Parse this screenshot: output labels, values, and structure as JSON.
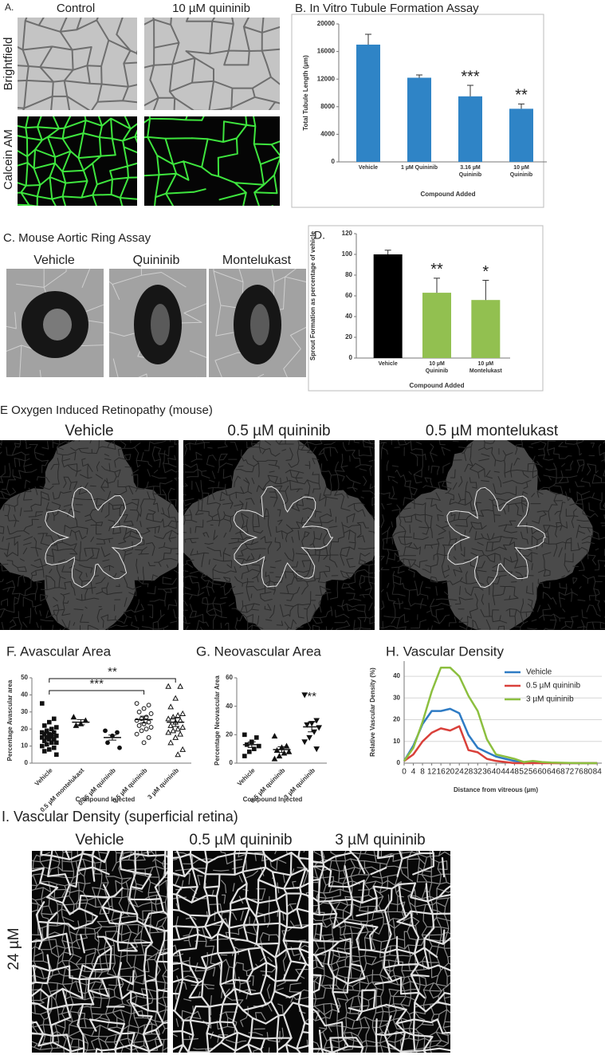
{
  "image_panels": {
    "a": {
      "label": "A.",
      "columns": [
        "Control",
        "10 µM quininib"
      ],
      "rows": [
        "Brightfield",
        "Calcein AM"
      ]
    },
    "c": {
      "title": "C. Mouse Aortic Ring Assay",
      "captions": [
        "Vehicle",
        "Quininib",
        "Montelukast"
      ]
    },
    "e": {
      "title": "E Oxygen Induced Retinopathy (mouse)",
      "captions": [
        "Vehicle",
        "0.5 µM quininib",
        "0.5 µM montelukast"
      ]
    },
    "i": {
      "title": "I. Vascular Density (superficial retina)",
      "captions": [
        "Vehicle",
        "0.5 µM quininib",
        "3 µM quininib"
      ],
      "row_label": "24 µM"
    }
  },
  "chart_data": [
    {
      "type": "bar",
      "title": "B. In Vitro Tubule Formation Assay",
      "y_label": "Total Tubule Length (µm)",
      "x_label": "Compound Added",
      "categories": [
        "Vehicle",
        "1 µM Quininib",
        "3.16 µM Quininib",
        "10 µM Quininib"
      ],
      "values": [
        17000,
        12200,
        9500,
        7700
      ],
      "errors": [
        1500,
        400,
        1600,
        700
      ],
      "color": "#2f84c6",
      "ylim": [
        0,
        20000
      ],
      "yticks": [
        0,
        4000,
        8000,
        12000,
        16000,
        20000
      ],
      "grid": false,
      "annotations": [
        {
          "text": "***",
          "at": "3.16 µM Quininib"
        },
        {
          "text": "**",
          "at": "10 µM Quininib"
        }
      ]
    },
    {
      "type": "bar",
      "title": "D.",
      "y_label": "Sprout Formation as percentage of vehicle",
      "x_label": "Compound Added",
      "categories": [
        "Vehicle",
        "10 µM Quininib",
        "10 µM Montelukast"
      ],
      "values": [
        100,
        63,
        56
      ],
      "errors": [
        4,
        14,
        19
      ],
      "colors": [
        "#000000",
        "#92c050",
        "#92c050"
      ],
      "ylim": [
        0,
        120
      ],
      "yticks": [
        0,
        20,
        40,
        60,
        80,
        100,
        120
      ],
      "grid": false,
      "annotations": [
        {
          "text": "**",
          "at": "10 µM Quininib"
        },
        {
          "text": "*",
          "at": "10 µM Montelukast"
        }
      ]
    },
    {
      "type": "dot",
      "title": "F. Avascular Area",
      "y_label": "Percentage Avascular area",
      "x_label": "Compound Injected",
      "categories": [
        "Vehicle",
        "0.5 µM montelukast",
        "0.05 µM quininib",
        "0.5 µM quininib",
        "3 µM quininib"
      ],
      "points": [
        [
          35,
          26,
          24,
          22,
          21,
          20,
          19,
          18,
          18,
          17,
          17,
          16,
          16,
          15,
          15,
          14,
          14,
          13,
          12,
          12,
          11,
          10,
          9,
          8,
          7,
          5
        ],
        [
          27,
          25,
          23,
          22
        ],
        [
          19,
          18,
          16,
          12,
          9
        ],
        [
          35,
          34,
          32,
          30,
          29,
          27,
          26,
          25,
          24,
          23,
          22,
          21,
          20,
          19,
          17,
          15,
          12
        ],
        [
          45,
          45,
          38,
          33,
          29,
          28,
          27,
          26,
          25,
          24,
          22,
          21,
          20,
          19,
          18,
          17,
          15,
          12,
          8,
          5
        ]
      ],
      "means": [
        16,
        24,
        15,
        25.5,
        24
      ],
      "sem": [
        1.5,
        1.5,
        1.5,
        2,
        2.5
      ],
      "markers": [
        "square",
        "triangle",
        "circle",
        "circle-open",
        "triangle-open"
      ],
      "ylim": [
        0,
        50
      ],
      "yticks": [
        0,
        10,
        20,
        30,
        40,
        50
      ],
      "annotations": [
        {
          "text": "**",
          "from": "Vehicle",
          "to": "3 µM quininib",
          "color": "#e8262b"
        },
        {
          "text": "***",
          "from": "Vehicle",
          "to": "0.5 µM quininib",
          "color": "#e8262b"
        }
      ]
    },
    {
      "type": "dot",
      "title": "G. Neovascular Area",
      "y_label": "Percentage Neovascular Area",
      "x_label": "Compound Injected",
      "categories": [
        "Vehicle",
        "0.5 µM quininib",
        "3 µM quininib"
      ],
      "points": [
        [
          20,
          18,
          15,
          13,
          12,
          10,
          8,
          5
        ],
        [
          19,
          12,
          11,
          9,
          8,
          7,
          5,
          3
        ],
        [
          48,
          30,
          28,
          27,
          25,
          22,
          18,
          15,
          10
        ]
      ],
      "means": [
        13,
        9.5,
        25.5
      ],
      "sem": [
        2,
        2,
        3.5
      ],
      "markers": [
        "square",
        "triangle",
        "triangle-down"
      ],
      "ylim": [
        0,
        60
      ],
      "yticks": [
        0,
        20,
        40,
        60
      ],
      "annotations": [
        {
          "text": "**",
          "at": "3 µM quininib",
          "color": "#e8262b"
        }
      ]
    },
    {
      "type": "line",
      "title": "H. Vascular Density",
      "y_label": "Relative Vascular Density (%)",
      "x_label": "Distance from vitreous (µm)",
      "x": [
        0,
        4,
        8,
        12,
        16,
        20,
        24,
        28,
        32,
        36,
        40,
        44,
        48,
        52,
        56,
        60,
        64,
        68,
        72,
        76,
        80,
        84
      ],
      "series": [
        {
          "name": "Vehicle",
          "color": "#2e7bc4",
          "values": [
            1,
            8,
            18,
            24,
            24,
            25,
            23,
            13,
            7,
            5,
            3,
            2,
            1,
            0.5,
            0.3,
            0.2,
            0.1,
            0,
            0,
            0,
            0,
            0
          ]
        },
        {
          "name": "0.5 µM quininib",
          "color": "#d9403a",
          "values": [
            1,
            4,
            10,
            14,
            16,
            15,
            17,
            6,
            5,
            2,
            1,
            0.5,
            0,
            0,
            0,
            0,
            0,
            0,
            0,
            0,
            0,
            0
          ]
        },
        {
          "name": "3 µM quininib",
          "color": "#8cbf3f",
          "values": [
            1,
            7,
            19,
            33,
            44,
            44,
            40,
            31,
            24,
            11,
            4,
            3,
            2,
            0.5,
            1,
            0.5,
            0.3,
            0.2,
            0.1,
            0,
            0,
            0
          ]
        }
      ],
      "xlim": [
        0,
        86
      ],
      "xticks": [
        0,
        4,
        8,
        12,
        16,
        20,
        24,
        28,
        32,
        36,
        40,
        44,
        48,
        52,
        56,
        60,
        64,
        68,
        72,
        76,
        80,
        84
      ],
      "ylim": [
        0,
        47
      ],
      "yticks": [
        0,
        10,
        20,
        30,
        40
      ],
      "grid": true,
      "legend": "top-right"
    }
  ]
}
